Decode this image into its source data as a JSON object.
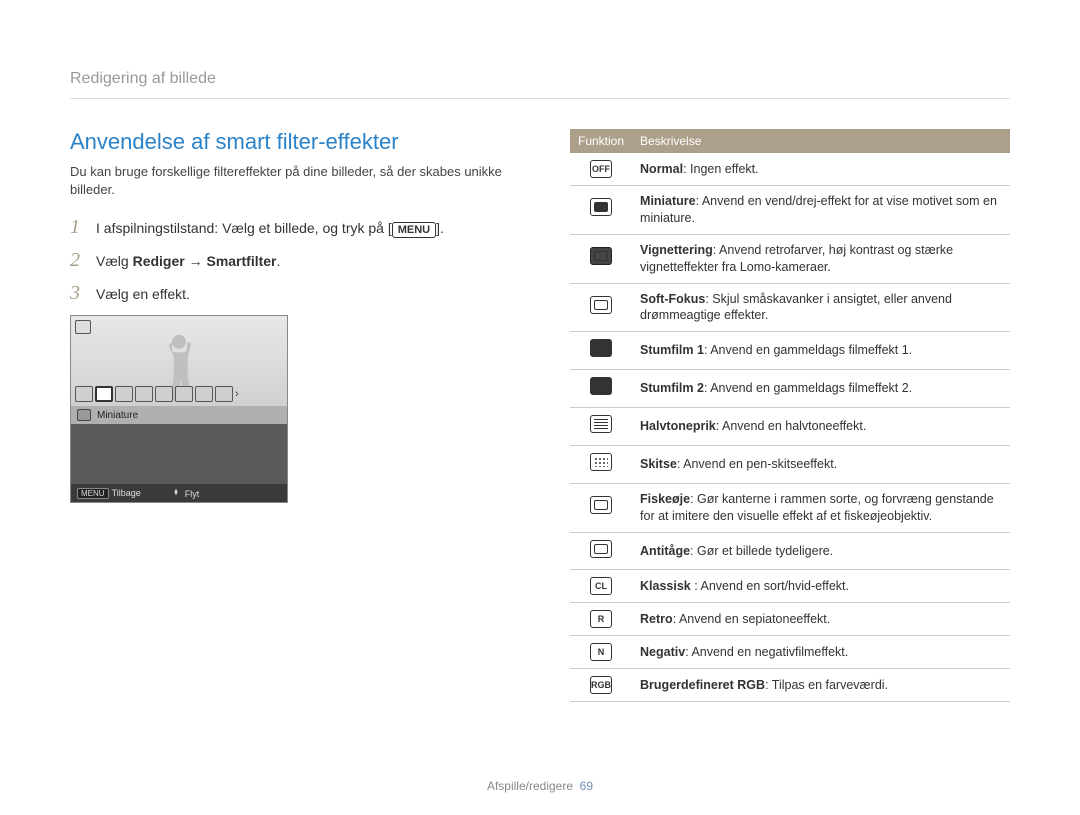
{
  "breadcrumb": "Redigering af billede",
  "section_title": "Anvendelse af smart filter-effekter",
  "intro": "Du kan bruge forskellige filtereffekter på dine billeder, så der skabes unikke billeder.",
  "steps": [
    {
      "num": "1",
      "pre": "I afspilningstilstand: Vælg et billede, og tryk på [",
      "btn": "MENU",
      "post": "]."
    },
    {
      "num": "2",
      "pre": "Vælg ",
      "bold": "Rediger → Smartfilter",
      "post": "."
    },
    {
      "num": "3",
      "pre": "Vælg en effekt."
    }
  ],
  "camera": {
    "label": "Miniature",
    "back_btn": "MENU",
    "back_text": "Tilbage",
    "move_text": "Flyt"
  },
  "table": {
    "header_func": "Funktion",
    "header_desc": "Beskrivelse",
    "rows": [
      {
        "icon_text": "OFF",
        "icon_class": "",
        "name": "Normal",
        "desc": ": Ingen effekt."
      },
      {
        "icon_text": "",
        "icon_class": "innerdark",
        "name": "Miniature",
        "desc": ": Anvend en vend/drej-effekt for at vise motivet som en miniature."
      },
      {
        "icon_text": "",
        "icon_class": "dark inner",
        "name": "Vignettering",
        "desc": ": Anvend retrofarver, høj kontrast og stærke vignetteffekter fra Lomo-kameraer."
      },
      {
        "icon_text": "",
        "icon_class": "inner",
        "name": "Soft-Fokus",
        "desc": ": Skjul småskavanker i ansigtet, eller anvend drømmeagtige effekter."
      },
      {
        "icon_text": "",
        "icon_class": "film",
        "name": "Stumfilm 1",
        "desc": ": Anvend en gammeldags filmeffekt 1."
      },
      {
        "icon_text": "",
        "icon_class": "film",
        "name": "Stumfilm 2",
        "desc": ": Anvend en gammeldags filmeffekt 2."
      },
      {
        "icon_text": "",
        "icon_class": "grid",
        "name": "Halvtoneprik",
        "desc": ": Anvend en halvtoneeffekt."
      },
      {
        "icon_text": "",
        "icon_class": "dots",
        "name": "Skitse",
        "desc": ": Anvend en pen-skitseeffekt."
      },
      {
        "icon_text": "",
        "icon_class": "inner",
        "name": "Fiskeøje",
        "desc": ": Gør kanterne i rammen sorte, og forvræng genstande for at imitere den visuelle effekt af et fiskeøjeobjektiv."
      },
      {
        "icon_text": "",
        "icon_class": "inner",
        "name": "Antitåge",
        "desc": ": Gør et billede tydeligere."
      },
      {
        "icon_text": "CL",
        "icon_class": "",
        "name": "Klassisk ",
        "desc": ": Anvend en sort/hvid-effekt."
      },
      {
        "icon_text": "R",
        "icon_class": "",
        "name": "Retro",
        "desc": ": Anvend en sepiatoneeffekt."
      },
      {
        "icon_text": "N",
        "icon_class": "",
        "name": "Negativ",
        "desc": ": Anvend en negativfilmeffekt."
      },
      {
        "icon_text": "RGB",
        "icon_class": "",
        "name": "Brugerdefineret RGB",
        "desc": ": Tilpas en farveværdi."
      }
    ]
  },
  "footer": {
    "section": "Afspille/redigere",
    "page": "69"
  },
  "colors": {
    "accent": "#2a82c9",
    "step_num": "#a89f8a",
    "table_header_bg": "#aca08a",
    "border": "#cccccc"
  }
}
